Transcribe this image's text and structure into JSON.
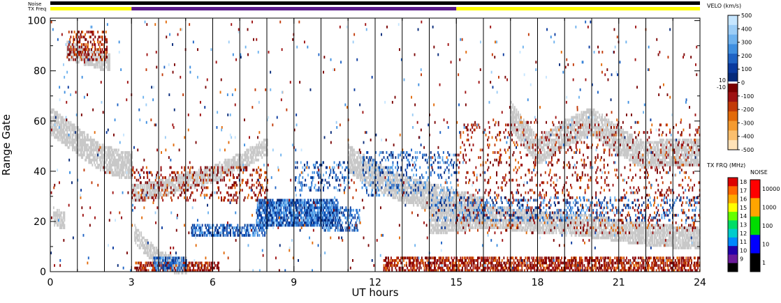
{
  "chart_data": {
    "type": "heatmap",
    "title": "",
    "xlabel": "UT hours",
    "ylabel": "Range Gate",
    "xlim": [
      0,
      24
    ],
    "ylim": [
      0,
      101
    ],
    "x_ticks": [
      0,
      3,
      6,
      9,
      12,
      15,
      18,
      21,
      24
    ],
    "y_ticks": [
      0,
      20,
      40,
      60,
      80,
      100
    ],
    "scan_boundaries_hours": [
      1,
      2,
      3,
      4,
      5,
      6,
      7,
      8,
      9,
      10,
      11,
      12,
      13,
      14,
      15,
      16,
      17,
      18,
      19,
      20,
      21,
      22,
      23
    ],
    "top_bars": {
      "noise_label": "Noise",
      "txfreq_label": "TX Freq",
      "txfreq_segments": [
        {
          "start": 0,
          "end": 3,
          "color": "#ffff00"
        },
        {
          "start": 3,
          "end": 15,
          "color": "#5a1a8a"
        },
        {
          "start": 15,
          "end": 24,
          "color": "#ffff00"
        }
      ],
      "noise_color": "#000000"
    },
    "ground_scatter_color": "#c8c8c8",
    "features": {
      "ground_scatter_bands": [
        {
          "t": [
            0,
            0.5,
            1,
            1.5,
            2,
            2.5,
            3
          ],
          "g": [
            60,
            56,
            52,
            48,
            45,
            43,
            42
          ],
          "w": 5
        },
        {
          "t": [
            0.6,
            1.2,
            1.8,
            2.2
          ],
          "g": [
            88,
            86,
            84,
            83
          ],
          "w": 3
        },
        {
          "t": [
            3,
            4,
            5,
            6,
            7,
            8
          ],
          "g": [
            31,
            33,
            36,
            39,
            44,
            50
          ],
          "w": 3
        },
        {
          "t": [
            3.1,
            3.5,
            4,
            4.5,
            5
          ],
          "g": [
            15,
            10,
            5,
            3,
            2
          ],
          "w": 3
        },
        {
          "t": [
            11,
            12,
            13,
            14,
            15,
            16
          ],
          "g": [
            45,
            38,
            33,
            30,
            27,
            24
          ],
          "w": 5
        },
        {
          "t": [
            14,
            16,
            18,
            20,
            22,
            24
          ],
          "g": [
            19,
            22,
            20,
            18,
            15,
            13
          ],
          "w": 4
        },
        {
          "t": [
            17,
            18,
            19,
            20,
            21,
            22,
            23,
            24
          ],
          "g": [
            62,
            48,
            55,
            60,
            52,
            46,
            48,
            47
          ],
          "w": 5
        },
        {
          "t": [
            0.1,
            0.5
          ],
          "g": [
            22,
            20
          ],
          "w": 3
        }
      ],
      "negative_velocity_regions": [
        {
          "t0": 3.1,
          "t1": 6.2,
          "g0": 0,
          "g1": 4,
          "density": 0.5
        },
        {
          "t0": 12.3,
          "t1": 24,
          "g0": 0,
          "g1": 6,
          "density": 0.55
        },
        {
          "t0": 0.6,
          "t1": 2.1,
          "g0": 84,
          "g1": 96,
          "density": 0.3
        },
        {
          "t0": 3,
          "t1": 8,
          "g0": 28,
          "g1": 42,
          "density": 0.15
        },
        {
          "t0": 15,
          "t1": 24,
          "g0": 15,
          "g1": 60,
          "density": 0.08
        }
      ],
      "positive_velocity_regions": [
        {
          "t0": 7.6,
          "t1": 10.6,
          "g0": 18,
          "g1": 29,
          "density": 0.75
        },
        {
          "t0": 5.2,
          "t1": 8,
          "g0": 14,
          "g1": 19,
          "density": 0.5
        },
        {
          "t0": 10,
          "t1": 11.4,
          "g0": 16,
          "g1": 26,
          "density": 0.4
        },
        {
          "t0": 3.8,
          "t1": 5,
          "g0": 0,
          "g1": 6,
          "density": 0.5
        },
        {
          "t0": 9,
          "t1": 11,
          "g0": 32,
          "g1": 44,
          "density": 0.2
        },
        {
          "t0": 11.5,
          "t1": 15,
          "g0": 30,
          "g1": 48,
          "density": 0.15
        },
        {
          "t0": 14,
          "t1": 24,
          "g0": 20,
          "g1": 30,
          "density": 0.15
        }
      ]
    },
    "velocity_colorbar": {
      "title": "VELO (km/s)",
      "ticks": [
        500,
        400,
        300,
        200,
        100,
        0,
        -100,
        -200,
        -300,
        -400,
        -500
      ],
      "small_ticks": [
        "10",
        "-10"
      ],
      "colors_top_to_bottom": [
        "#c6e6ff",
        "#9ccdf6",
        "#6eb2ee",
        "#3f8fe0",
        "#1f63c4",
        "#0a3a9e",
        "#062a7a",
        "#7a0000",
        "#9e1212",
        "#c23a08",
        "#e26a0a",
        "#f49a30",
        "#fbbf6e",
        "#ffe2b8"
      ]
    },
    "txfreq_colorbar": {
      "title": "TX FRQ (MHz)",
      "ticks": [
        "18",
        "17",
        "16",
        "15",
        "14",
        "13",
        "12",
        "11",
        "10",
        "9"
      ],
      "colors_top_to_bottom": [
        "#dd0000",
        "#ff6600",
        "#ffaa00",
        "#ffff00",
        "#66ff00",
        "#00dd66",
        "#00cccc",
        "#0088ff",
        "#2200aa",
        "#6a1a9a",
        "#000000"
      ]
    },
    "noise_colorbar": {
      "title": "NOISE",
      "ticks": [
        "10000",
        "1000",
        "100",
        "10",
        "1"
      ],
      "colors_top_to_bottom": [
        "#ff0000",
        "#ffa500",
        "#00dd00",
        "#0000ff",
        "#000000"
      ]
    }
  }
}
